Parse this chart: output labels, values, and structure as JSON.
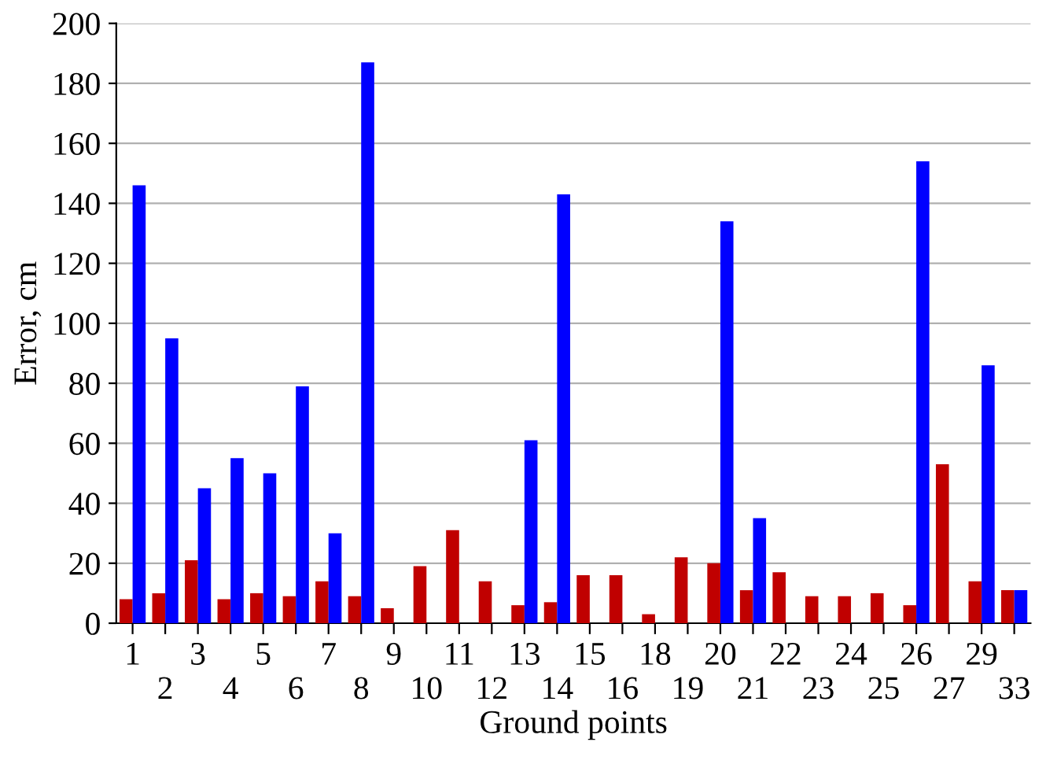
{
  "chart_data": {
    "type": "bar",
    "xlabel": "Ground points",
    "ylabel": "Error, cm",
    "categories": [
      "1",
      "2",
      "3",
      "4",
      "5",
      "6",
      "7",
      "8",
      "9",
      "10",
      "11",
      "12",
      "13",
      "14",
      "15",
      "16",
      "18",
      "19",
      "20",
      "21",
      "22",
      "23",
      "24",
      "25",
      "26",
      "27",
      "29",
      "33"
    ],
    "series": [
      {
        "color": "#c00000",
        "values": [
          8,
          10,
          21,
          8,
          10,
          9,
          14,
          9,
          5,
          19,
          31,
          14,
          6,
          7,
          16,
          16,
          3,
          22,
          20,
          11,
          17,
          9,
          9,
          10,
          6,
          53,
          14,
          11
        ]
      },
      {
        "color": "#0000ff",
        "values": [
          146,
          95,
          45,
          55,
          50,
          79,
          30,
          187,
          null,
          null,
          null,
          null,
          61,
          143,
          null,
          null,
          null,
          null,
          134,
          35,
          null,
          null,
          null,
          null,
          154,
          null,
          86,
          11
        ]
      }
    ],
    "ylim": [
      0,
      200
    ],
    "yticks": [
      0,
      20,
      40,
      60,
      80,
      100,
      120,
      140,
      160,
      180,
      200
    ],
    "grid": "y",
    "legend": false
  }
}
